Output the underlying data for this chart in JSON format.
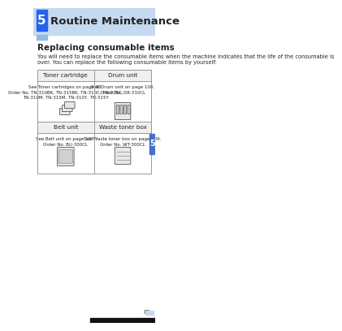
{
  "page_bg": "#ffffff",
  "header_bar_color": "#c5d9f1",
  "header_bar_height": 0.085,
  "chapter_box_color": "#2563eb",
  "chapter_box_light": "#93b8e8",
  "chapter_number": "5",
  "chapter_title": "Routine Maintenance",
  "section_title": "Replacing consumable items",
  "intro_text": "You will need to replace the consumable items when the machine indicates that the life of the consumable is\nover. You can replace the following consumable items by yourself:",
  "table_border_color": "#999999",
  "table_header_bg": "#ffffff",
  "cell_headers": [
    "Toner cartridge",
    "Drum unit"
  ],
  "cell_headers2": [
    "Belt unit",
    "Waste toner box"
  ],
  "cell_text_left1": "See Toner cartridges on page 95.\nOrder No. TN-310BK, TN-315BK, TN-310C, TN-315C,\nTN-310M, TN-315M, TN-310Y, TN-315Y",
  "cell_text_right1": "See Drum unit on page 100.\nOrder No. DR-310CL",
  "cell_text_left2": "See Belt unit on page 105.\nOrder No. BU-300CL",
  "cell_text_right2": "See Waste toner box on page 109.\nOrder No. WT-300CL",
  "side_tab_color": "#4472c4",
  "side_tab_number": "5",
  "footer_number": "85",
  "footer_bar_color": "#4472c4",
  "footer_bg_color": "#c5d9f1",
  "text_color": "#222222",
  "gray_text": "#555555"
}
